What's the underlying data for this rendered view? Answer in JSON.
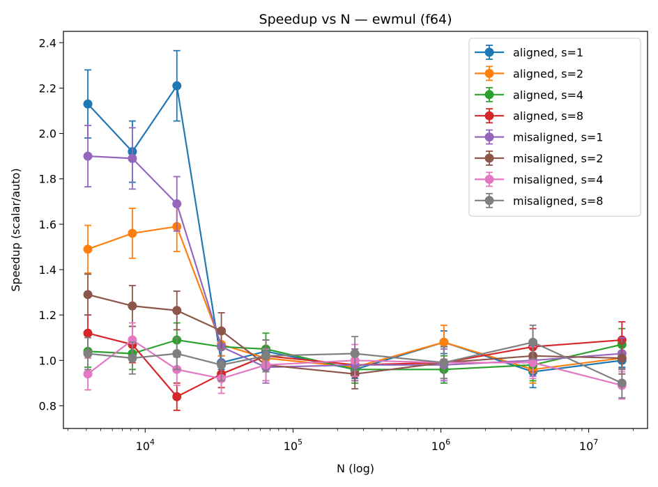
{
  "chart_data": {
    "type": "line",
    "title": "Speedup vs N — ewmul (f64)",
    "xlabel": "N (log)",
    "ylabel": "Speedup (scalar/auto)",
    "xscale": "log",
    "xlim": [
      2800,
      25000000
    ],
    "ylim": [
      0.7,
      2.45
    ],
    "x": [
      4096,
      8192,
      16384,
      32768,
      65536,
      262144,
      1048576,
      4194304,
      16777216
    ],
    "yticks": [
      0.8,
      1.0,
      1.2,
      1.4,
      1.6,
      1.8,
      2.0,
      2.2,
      2.4
    ],
    "ytick_labels": [
      "0.8",
      "1.0",
      "1.2",
      "1.4",
      "1.6",
      "1.8",
      "2.0",
      "2.2",
      "2.4"
    ],
    "xticks": [
      {
        "value": 10000,
        "base": "10",
        "exp": "4"
      },
      {
        "value": 100000,
        "base": "10",
        "exp": "5"
      },
      {
        "value": 1000000,
        "base": "10",
        "exp": "6"
      },
      {
        "value": 10000000,
        "base": "10",
        "exp": "7"
      }
    ],
    "legend_position": "top-right",
    "grid": false,
    "series": [
      {
        "name": "aligned, s=1",
        "color": "#1f77b4",
        "values": [
          2.13,
          1.92,
          2.21,
          0.99,
          1.04,
          0.96,
          1.08,
          0.95,
          1.0
        ],
        "errors": [
          0.15,
          0.135,
          0.155,
          0.03,
          0.05,
          0.04,
          0.05,
          0.07,
          0.03
        ]
      },
      {
        "name": "aligned, s=2",
        "color": "#ff7f0e",
        "values": [
          1.49,
          1.56,
          1.59,
          1.07,
          1.01,
          0.97,
          1.08,
          0.96,
          1.01
        ],
        "errors": [
          0.105,
          0.11,
          0.11,
          0.05,
          0.05,
          0.06,
          0.075,
          0.06,
          0.05
        ]
      },
      {
        "name": "aligned, s=4",
        "color": "#2ca02c",
        "values": [
          1.04,
          1.03,
          1.09,
          1.06,
          1.05,
          0.96,
          0.96,
          0.98,
          1.07
        ],
        "errors": [
          0.07,
          0.07,
          0.075,
          0.06,
          0.07,
          0.06,
          0.06,
          0.07,
          0.07
        ]
      },
      {
        "name": "aligned, s=8",
        "color": "#d62728",
        "values": [
          1.12,
          1.07,
          0.84,
          0.94,
          1.02,
          0.98,
          0.99,
          1.06,
          1.09
        ],
        "errors": [
          0.08,
          0.08,
          0.06,
          0.06,
          0.07,
          0.07,
          0.07,
          0.08,
          0.08
        ]
      },
      {
        "name": "misaligned, s=1",
        "color": "#9467bd",
        "values": [
          1.9,
          1.89,
          1.69,
          1.06,
          0.97,
          0.98,
          0.98,
          1.0,
          1.03
        ],
        "errors": [
          0.135,
          0.135,
          0.12,
          0.06,
          0.07,
          0.07,
          0.07,
          0.07,
          0.07
        ]
      },
      {
        "name": "misaligned, s=2",
        "color": "#8c564b",
        "values": [
          1.29,
          1.24,
          1.22,
          1.13,
          0.98,
          0.94,
          0.99,
          1.02,
          1.01
        ],
        "errors": [
          0.09,
          0.09,
          0.085,
          0.08,
          0.07,
          0.065,
          0.07,
          0.07,
          0.07
        ]
      },
      {
        "name": "misaligned, s=4",
        "color": "#e377c2",
        "values": [
          0.94,
          1.09,
          0.96,
          0.92,
          0.98,
          1.0,
          0.99,
          0.99,
          0.89
        ],
        "errors": [
          0.07,
          0.075,
          0.07,
          0.065,
          0.07,
          0.07,
          0.07,
          0.07,
          0.06
        ]
      },
      {
        "name": "misaligned, s=8",
        "color": "#7f7f7f",
        "values": [
          1.03,
          1.01,
          1.03,
          0.98,
          1.02,
          1.03,
          0.99,
          1.08,
          0.9
        ],
        "errors": [
          0.07,
          0.07,
          0.07,
          0.07,
          0.07,
          0.075,
          0.07,
          0.075,
          0.065
        ]
      }
    ]
  }
}
